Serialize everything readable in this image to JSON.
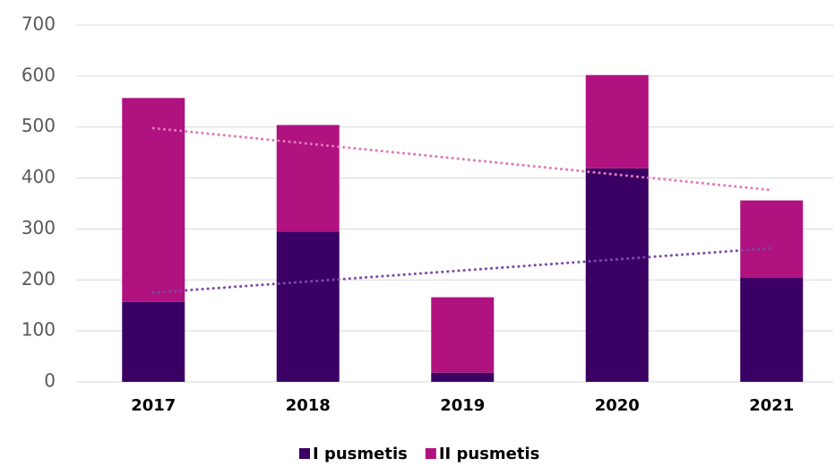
{
  "chart_data": {
    "type": "stacked_bar",
    "categories": [
      "2017",
      "2018",
      "2019",
      "2020",
      "2021"
    ],
    "series": [
      {
        "name": "I pusmetis",
        "color": "#3a0063",
        "values": [
          157,
          295,
          18,
          419,
          204
        ]
      },
      {
        "name": "II pusmetis",
        "color": "#b0127f",
        "values": [
          400,
          209,
          148,
          183,
          152
        ]
      }
    ],
    "trendlines": [
      {
        "series": 0,
        "color": "#7b4aa8"
      },
      {
        "series": 1,
        "color": "#e07ab8"
      }
    ],
    "ylim": [
      0,
      700
    ],
    "yticks": [
      0,
      100,
      200,
      300,
      400,
      500,
      600,
      700
    ],
    "grid": true,
    "legend": "bottom"
  }
}
